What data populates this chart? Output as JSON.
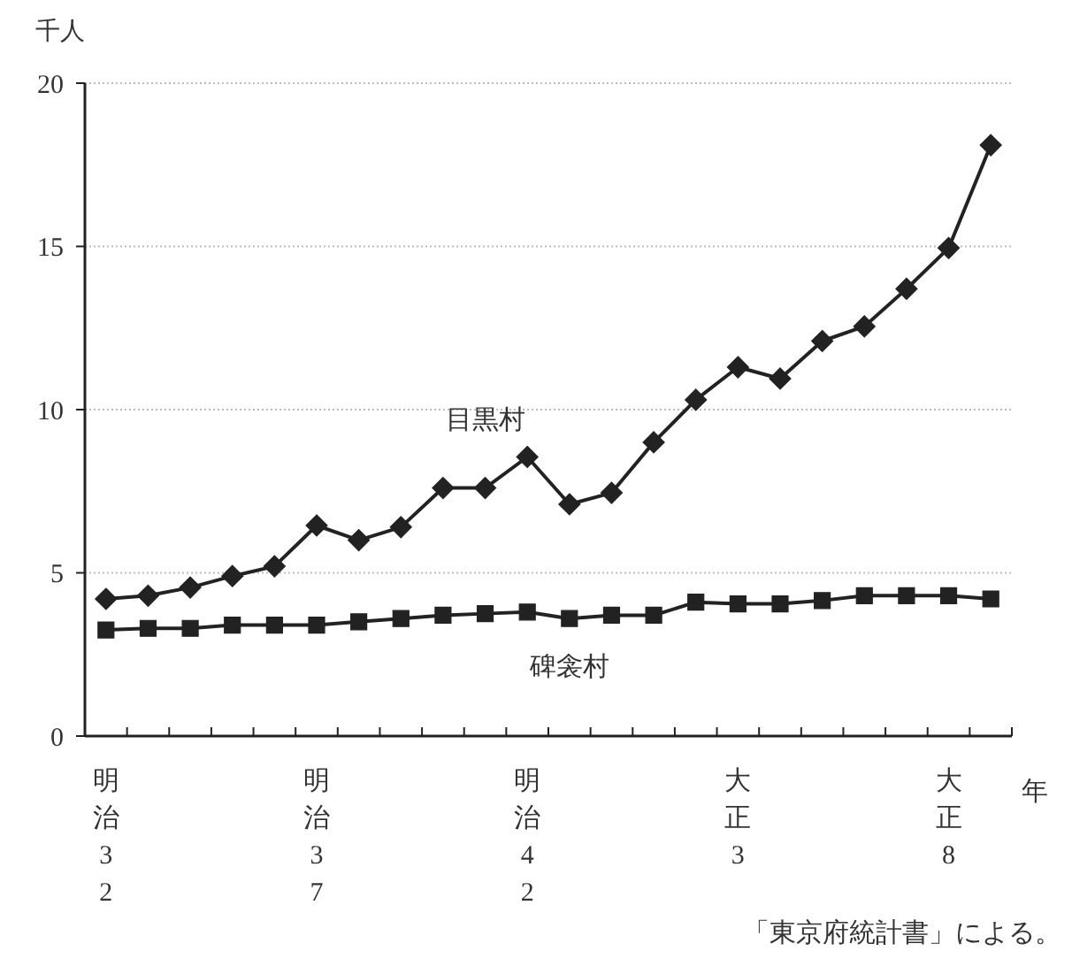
{
  "chart_data": {
    "type": "line",
    "ylabel": "千人",
    "xlabel": "年",
    "categories": [
      "明治32",
      null,
      null,
      null,
      null,
      "明治37",
      null,
      null,
      null,
      null,
      "明治42",
      null,
      null,
      null,
      null,
      "大正3",
      null,
      null,
      null,
      null,
      "大正8",
      null
    ],
    "series": [
      {
        "name": "目黒村",
        "color": "#222222",
        "marker": "diamond",
        "values": [
          4.2,
          4.3,
          4.55,
          4.9,
          5.2,
          6.45,
          6.0,
          6.4,
          7.6,
          7.6,
          8.55,
          7.1,
          7.45,
          9.0,
          10.3,
          11.3,
          10.95,
          12.1,
          12.55,
          13.7,
          14.95,
          18.1
        ]
      },
      {
        "name": "碑衾村",
        "color": "#222222",
        "marker": "square",
        "values": [
          3.25,
          3.3,
          3.3,
          3.4,
          3.4,
          3.4,
          3.5,
          3.6,
          3.7,
          3.75,
          3.8,
          3.6,
          3.7,
          3.7,
          4.1,
          4.05,
          4.05,
          4.15,
          4.3,
          4.3,
          4.3,
          4.2
        ]
      }
    ],
    "ylim": [
      0,
      20
    ],
    "yticks": [
      0,
      5,
      10,
      15,
      20
    ],
    "grid": "y",
    "line_style": "solid",
    "annotations": [
      "「東京府統計書」による。"
    ]
  }
}
